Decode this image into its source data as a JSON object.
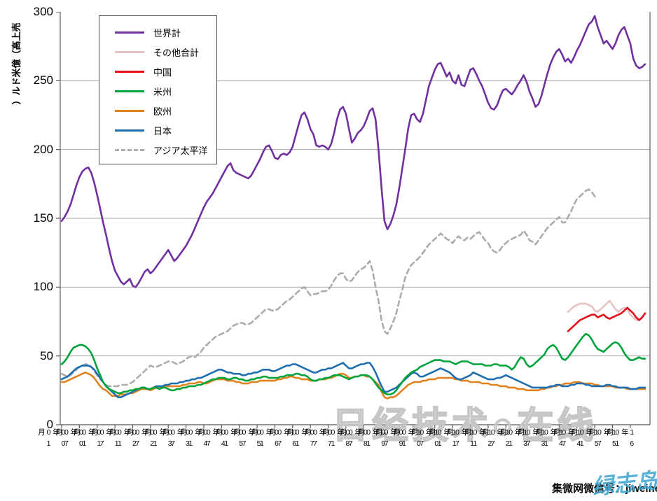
{
  "chart_data": {
    "type": "line",
    "title": "",
    "ylabel": "売上高（億米ドル）",
    "xlabel": "",
    "ylim": [
      0,
      300
    ],
    "yticks": [
      0,
      50,
      100,
      150,
      200,
      250,
      300
    ],
    "grid": "horizontal",
    "legend_position": "top-left-inside",
    "x_unit": "month",
    "x_range": [
      "2000-01",
      "2016-06"
    ],
    "x_tick_labels": [
      "00年01月",
      "00年07月",
      "01年01月",
      "01年07月",
      "02年01月",
      "02年07月",
      "03年01月",
      "03年07月",
      "04年01月",
      "04年07月",
      "05年01月",
      "05年07月",
      "06年01月",
      "06年07月",
      "07年01月",
      "07年07月",
      "08年01月",
      "08年07月",
      "09年01月",
      "09年07月",
      "10年01月",
      "10年07月",
      "11年01月",
      "11年07月",
      "12年01月",
      "12年07月",
      "13年01月",
      "13年07月",
      "14年01月",
      "14年07月",
      "15年01月",
      "15年07月",
      "16年01月"
    ],
    "draw_order": [
      1,
      6,
      4,
      5,
      3,
      2,
      0
    ],
    "series": [
      {
        "name": "世界計",
        "color": "#7030A0",
        "line_style": "solid",
        "start_index": 0,
        "values": [
          148,
          151,
          155,
          160,
          167,
          174,
          180,
          184,
          186,
          187,
          183,
          176,
          167,
          157,
          147,
          138,
          128,
          119,
          112,
          108,
          104,
          102,
          104,
          106,
          101,
          100,
          103,
          107,
          111,
          113,
          110,
          112,
          115,
          118,
          121,
          124,
          127,
          123,
          119,
          121,
          124,
          127,
          130,
          134,
          138,
          143,
          148,
          153,
          158,
          162,
          165,
          168,
          172,
          176,
          180,
          184,
          188,
          190,
          185,
          183,
          182,
          181,
          180,
          179,
          181,
          185,
          189,
          193,
          198,
          202,
          203,
          199,
          194,
          193,
          196,
          197,
          196,
          198,
          202,
          210,
          218,
          225,
          227,
          222,
          215,
          211,
          203,
          202,
          203,
          202,
          200,
          204,
          212,
          222,
          229,
          231,
          226,
          215,
          205,
          208,
          212,
          214,
          217,
          222,
          228,
          230,
          222,
          200,
          172,
          148,
          142,
          146,
          152,
          160,
          172,
          186,
          200,
          215,
          225,
          226,
          222,
          220,
          226,
          236,
          246,
          252,
          258,
          262,
          263,
          258,
          253,
          256,
          250,
          248,
          254,
          247,
          246,
          252,
          258,
          259,
          255,
          250,
          246,
          240,
          234,
          230,
          229,
          232,
          238,
          243,
          244,
          242,
          240,
          243,
          247,
          250,
          254,
          249,
          242,
          237,
          231,
          233,
          239,
          247,
          255,
          262,
          267,
          271,
          273,
          269,
          264,
          266,
          263,
          267,
          272,
          276,
          281,
          286,
          291,
          293,
          297,
          289,
          283,
          277,
          279,
          276,
          273,
          277,
          283,
          287,
          289,
          283,
          277,
          266,
          261,
          259,
          260,
          262
        ]
      },
      {
        "name": "その他合計",
        "color": "#E5C3C3",
        "line_style": "solid",
        "start_index": 171,
        "values": [
          82,
          84,
          86,
          87,
          88,
          88,
          88,
          87,
          86,
          83,
          82,
          84,
          86,
          88,
          90,
          87,
          84,
          82,
          84,
          85,
          84,
          80,
          78,
          76,
          76,
          78,
          81
        ]
      },
      {
        "name": "中国",
        "color": "#E60E19",
        "line_style": "solid",
        "start_index": 171,
        "values": [
          68,
          70,
          72,
          74,
          76,
          77,
          78,
          79,
          80,
          80,
          78,
          79,
          80,
          78,
          77,
          78,
          79,
          80,
          81,
          83,
          85,
          83,
          81,
          78,
          76,
          78,
          81
        ]
      },
      {
        "name": "米州",
        "color": "#00A33C",
        "line_style": "solid",
        "start_index": 0,
        "values": [
          44,
          46,
          49,
          53,
          56,
          57,
          58,
          58,
          57,
          55,
          52,
          47,
          41,
          36,
          31,
          28,
          26,
          25,
          24,
          23,
          23,
          24,
          24,
          25,
          25,
          26,
          26,
          27,
          27,
          26,
          26,
          27,
          27,
          26,
          27,
          27,
          26,
          25,
          25,
          26,
          26,
          27,
          27,
          28,
          28,
          28,
          29,
          29,
          30,
          31,
          32,
          33,
          33,
          34,
          34,
          34,
          33,
          33,
          34,
          34,
          33,
          33,
          32,
          32,
          33,
          33,
          34,
          34,
          35,
          35,
          34,
          34,
          34,
          34,
          35,
          35,
          36,
          36,
          36,
          37,
          37,
          36,
          36,
          35,
          33,
          32,
          32,
          33,
          33,
          34,
          34,
          35,
          36,
          36,
          36,
          35,
          34,
          33,
          34,
          35,
          35,
          36,
          36,
          36,
          35,
          33,
          30,
          27,
          25,
          23,
          22,
          22,
          23,
          25,
          28,
          31,
          34,
          36,
          38,
          39,
          40,
          42,
          43,
          44,
          45,
          46,
          47,
          47,
          47,
          46,
          46,
          46,
          45,
          44,
          45,
          46,
          46,
          46,
          45,
          44,
          44,
          44,
          44,
          43,
          43,
          43,
          44,
          44,
          43,
          43,
          43,
          42,
          40,
          42,
          46,
          49,
          48,
          44,
          42,
          43,
          45,
          47,
          49,
          51,
          55,
          57,
          58,
          56,
          52,
          48,
          47,
          49,
          52,
          55,
          58,
          61,
          64,
          66,
          65,
          62,
          58,
          55,
          54,
          53,
          55,
          57,
          59,
          60,
          59,
          56,
          52,
          49,
          47,
          47,
          48,
          49,
          48,
          48
        ]
      },
      {
        "name": "欧州",
        "color": "#E0821E",
        "line_style": "solid",
        "start_index": 0,
        "values": [
          31,
          31,
          32,
          33,
          34,
          35,
          36,
          37,
          38,
          37,
          36,
          34,
          31,
          28,
          26,
          25,
          23,
          21,
          21,
          21,
          22,
          22,
          22,
          23,
          23,
          24,
          25,
          26,
          26,
          26,
          25,
          26,
          27,
          27,
          27,
          28,
          28,
          28,
          28,
          28,
          28,
          29,
          29,
          30,
          30,
          30,
          31,
          31,
          30,
          30,
          31,
          32,
          33,
          33,
          33,
          33,
          32,
          32,
          32,
          31,
          31,
          30,
          30,
          30,
          31,
          31,
          31,
          32,
          32,
          32,
          32,
          32,
          32,
          33,
          33,
          34,
          34,
          35,
          35,
          34,
          34,
          33,
          33,
          33,
          32,
          32,
          32,
          33,
          33,
          33,
          34,
          34,
          35,
          36,
          37,
          37,
          36,
          34,
          34,
          35,
          35,
          36,
          36,
          35,
          35,
          33,
          31,
          29,
          24,
          20,
          19,
          20,
          20,
          21,
          23,
          25,
          27,
          29,
          30,
          31,
          31,
          31,
          32,
          32,
          33,
          33,
          33,
          34,
          34,
          34,
          34,
          34,
          34,
          33,
          33,
          32,
          32,
          32,
          31,
          31,
          31,
          31,
          30,
          30,
          30,
          29,
          29,
          29,
          28,
          28,
          28,
          27,
          27,
          27,
          26,
          26,
          26,
          25,
          25,
          25,
          25,
          25,
          26,
          26,
          27,
          27,
          28,
          28,
          29,
          29,
          30,
          30,
          30,
          31,
          31,
          31,
          30,
          30,
          30,
          30,
          29,
          29,
          28,
          28,
          28,
          28,
          28,
          27,
          27,
          27,
          27,
          26,
          26,
          26,
          26,
          26,
          26,
          26
        ]
      },
      {
        "name": "日本",
        "color": "#1F6FB0",
        "line_style": "solid",
        "start_index": 0,
        "values": [
          33,
          34,
          35,
          37,
          39,
          41,
          42,
          43,
          43,
          43,
          42,
          40,
          37,
          34,
          31,
          28,
          26,
          24,
          22,
          20,
          20,
          21,
          22,
          23,
          24,
          25,
          26,
          27,
          27,
          26,
          26,
          27,
          28,
          28,
          28,
          29,
          29,
          30,
          30,
          30,
          31,
          31,
          32,
          32,
          33,
          33,
          34,
          34,
          35,
          36,
          37,
          38,
          39,
          40,
          40,
          39,
          38,
          38,
          37,
          37,
          37,
          36,
          36,
          37,
          37,
          38,
          38,
          39,
          40,
          40,
          40,
          39,
          39,
          40,
          41,
          42,
          43,
          43,
          44,
          44,
          43,
          42,
          41,
          40,
          39,
          38,
          38,
          39,
          40,
          40,
          41,
          41,
          42,
          43,
          44,
          45,
          43,
          41,
          41,
          42,
          43,
          44,
          44,
          45,
          45,
          42,
          38,
          33,
          28,
          24,
          24,
          25,
          26,
          27,
          29,
          31,
          33,
          35,
          37,
          38,
          37,
          35,
          35,
          36,
          37,
          38,
          39,
          40,
          41,
          40,
          39,
          38,
          36,
          34,
          33,
          33,
          34,
          35,
          36,
          38,
          37,
          36,
          35,
          34,
          33,
          33,
          33,
          34,
          34,
          35,
          36,
          35,
          34,
          33,
          32,
          31,
          30,
          29,
          28,
          27,
          27,
          27,
          27,
          27,
          27,
          28,
          28,
          29,
          29,
          28,
          28,
          28,
          29,
          29,
          30,
          30,
          30,
          29,
          29,
          28,
          28,
          28,
          28,
          28,
          29,
          29,
          28,
          28,
          27,
          27,
          27,
          27,
          26,
          26,
          26,
          27,
          27,
          27
        ]
      },
      {
        "name": "アジア太平洋",
        "color": "#ACACAC",
        "line_style": "dashed",
        "start_index": 0,
        "values": [
          37,
          36,
          35,
          36,
          38,
          40,
          42,
          43,
          44,
          44,
          42,
          39,
          36,
          33,
          31,
          29,
          28,
          28,
          28,
          28,
          29,
          29,
          29,
          30,
          31,
          33,
          35,
          37,
          39,
          41,
          43,
          42,
          42,
          43,
          44,
          45,
          46,
          46,
          45,
          44,
          45,
          46,
          48,
          49,
          50,
          49,
          51,
          53,
          56,
          58,
          60,
          62,
          64,
          65,
          66,
          67,
          68,
          70,
          72,
          73,
          74,
          74,
          73,
          73,
          74,
          76,
          78,
          80,
          82,
          84,
          84,
          83,
          83,
          84,
          86,
          88,
          90,
          91,
          93,
          95,
          97,
          99,
          100,
          97,
          94,
          95,
          95,
          96,
          97,
          97,
          98,
          101,
          105,
          108,
          110,
          110,
          106,
          104,
          105,
          108,
          111,
          113,
          114,
          116,
          119,
          112,
          100,
          90,
          76,
          68,
          66,
          70,
          75,
          81,
          90,
          98,
          107,
          112,
          116,
          118,
          120,
          122,
          125,
          128,
          131,
          133,
          135,
          137,
          139,
          137,
          135,
          134,
          132,
          135,
          137,
          135,
          134,
          136,
          135,
          137,
          139,
          140,
          137,
          134,
          132,
          128,
          126,
          125,
          127,
          130,
          132,
          134,
          135,
          136,
          137,
          138,
          141,
          138,
          134,
          133,
          131,
          134,
          137,
          140,
          143,
          145,
          147,
          149,
          151,
          147,
          147,
          151,
          155,
          160,
          164,
          166,
          168,
          170,
          171,
          169,
          166,
          165
        ]
      }
    ]
  },
  "watermarks": {
    "center_text": "日经技术○在线",
    "bottom_right_text": "集微网微信号：jiweinet",
    "bottom_right_script": "绿志岛"
  }
}
